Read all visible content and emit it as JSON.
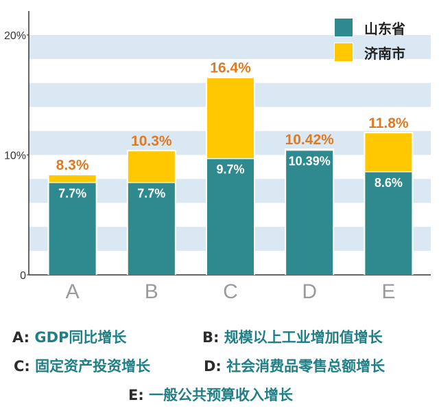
{
  "chart_data": {
    "type": "bar",
    "stacked": false,
    "overlaid": true,
    "categories": [
      "A",
      "B",
      "C",
      "D",
      "E"
    ],
    "series": [
      {
        "name": "山东省",
        "color": "#2f8a8f",
        "values": [
          7.7,
          7.7,
          9.7,
          10.39,
          8.6
        ],
        "labels": [
          "7.7%",
          "7.7%",
          "9.7%",
          "10.39%",
          "8.6%"
        ]
      },
      {
        "name": "济南市",
        "color": "#ffc800",
        "values": [
          8.3,
          10.3,
          16.4,
          10.42,
          11.8
        ],
        "labels": [
          "8.3%",
          "10.3%",
          "16.4%",
          "10.42%",
          "11.8%"
        ]
      }
    ],
    "yticks": [
      "0",
      "10%",
      "20%"
    ],
    "ylim": [
      0,
      22
    ],
    "grid": "horizontal bands",
    "legend_position": "top-right",
    "label_colors": {
      "inner": "#ffffff",
      "outer": "#e07a22"
    }
  },
  "caption": {
    "lines": [
      [
        {
          "key": "A:",
          "value": "GDP同比增长"
        },
        {
          "key": "B:",
          "value": "规模以上工业增加值增长"
        }
      ],
      [
        {
          "key": "C:",
          "value": "固定资产投资增长"
        },
        {
          "key": "D:",
          "value": "社会消费品零售总额增长"
        }
      ],
      [
        {
          "key": "E:",
          "value": "一般公共预算收入增长"
        }
      ]
    ]
  }
}
